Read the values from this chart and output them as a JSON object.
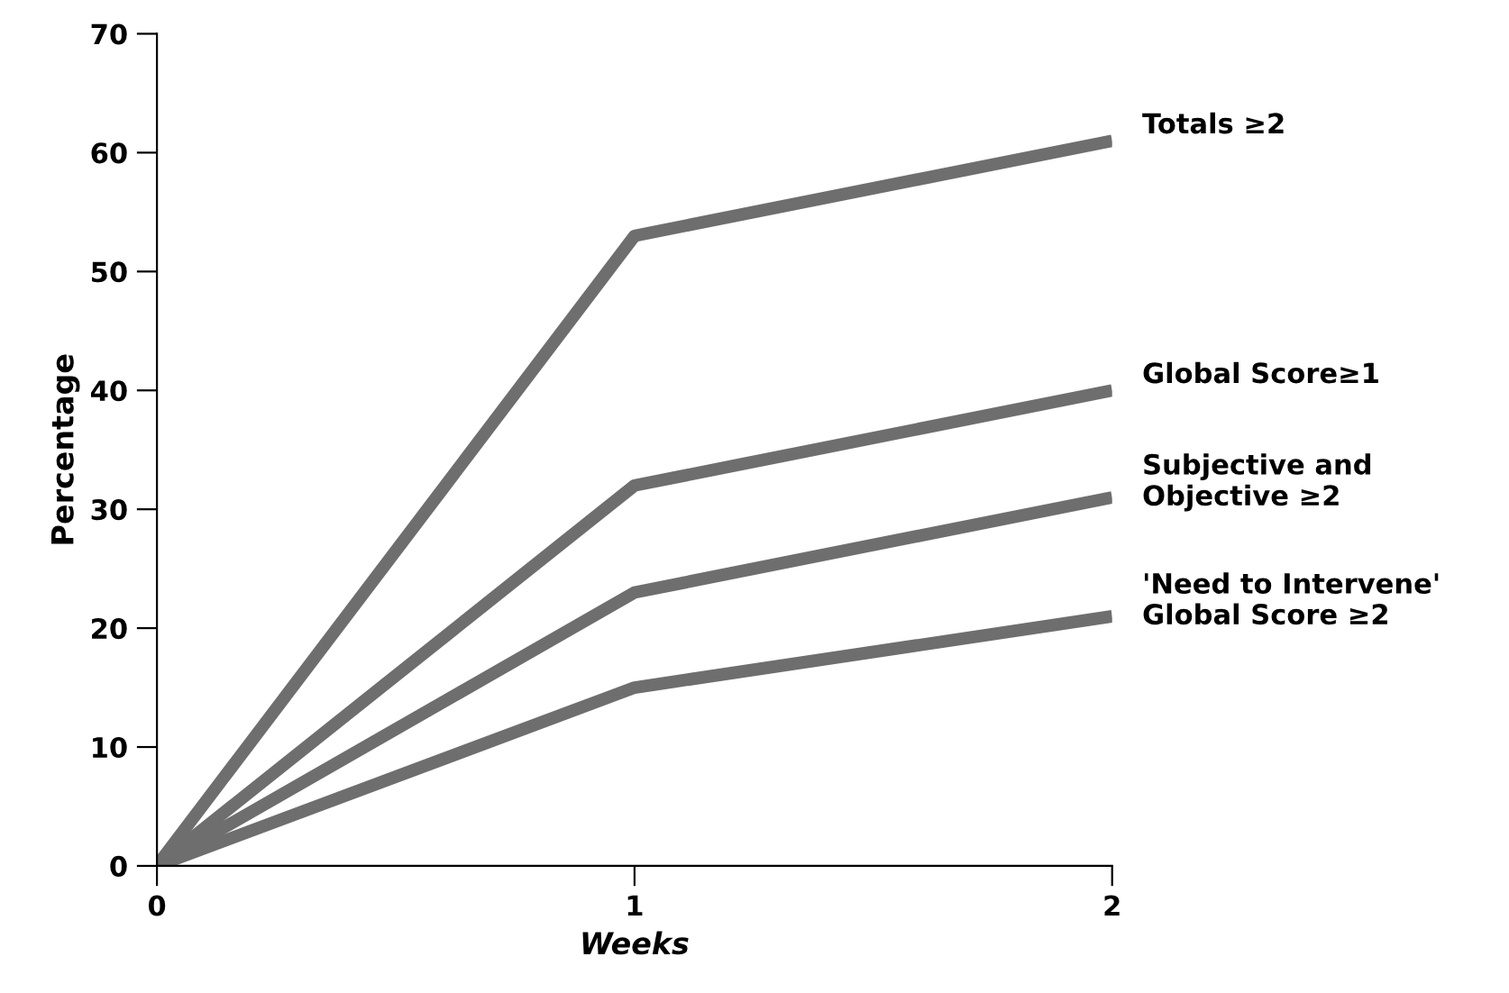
{
  "chart_data": {
    "type": "line",
    "xlabel": "Weeks",
    "ylabel": "Percentage",
    "x": [
      0,
      1,
      2
    ],
    "xlim": [
      0,
      2
    ],
    "xticks": [
      0,
      1,
      2
    ],
    "ylim": [
      0,
      70
    ],
    "yticks": [
      0,
      10,
      20,
      30,
      40,
      50,
      60,
      70
    ],
    "grid": false,
    "legend": false,
    "marker": "none",
    "line_style": "solid",
    "series": [
      {
        "name": "Totals ≥2",
        "color": "#6e6e6e",
        "values": [
          0,
          53,
          61
        ]
      },
      {
        "name": "Global Score≥1",
        "color": "#6e6e6e",
        "values": [
          0,
          32,
          40
        ]
      },
      {
        "name": "Subjective and\nObjective ≥2",
        "color": "#6e6e6e",
        "values": [
          0,
          23,
          31
        ]
      },
      {
        "name": "'Need to Intervene'\nGlobal Score ≥2",
        "color": "#6e6e6e",
        "values": [
          0,
          15,
          21
        ]
      }
    ]
  }
}
